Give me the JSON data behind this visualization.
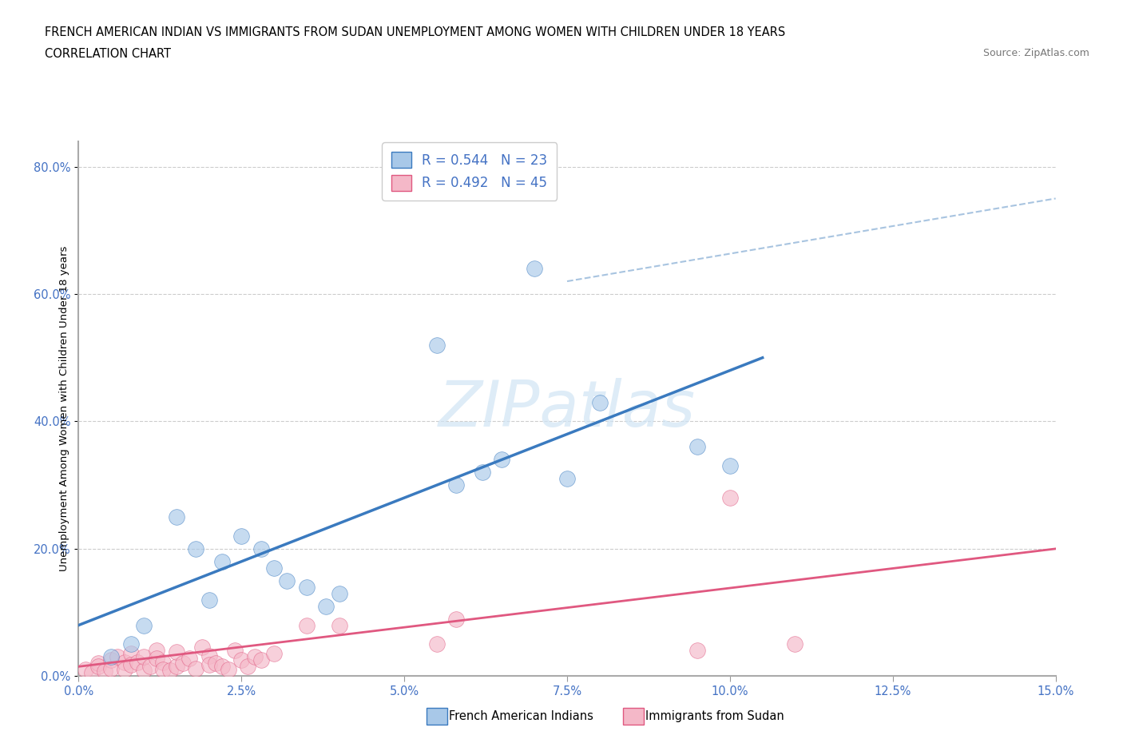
{
  "title_line1": "FRENCH AMERICAN INDIAN VS IMMIGRANTS FROM SUDAN UNEMPLOYMENT AMONG WOMEN WITH CHILDREN UNDER 18 YEARS",
  "title_line2": "CORRELATION CHART",
  "source": "Source: ZipAtlas.com",
  "xlabel_ticks": [
    "0.0%",
    "2.5%",
    "5.0%",
    "7.5%",
    "10.0%",
    "12.5%",
    "15.0%"
  ],
  "xlabel_vals": [
    0.0,
    2.5,
    5.0,
    7.5,
    10.0,
    12.5,
    15.0
  ],
  "ylabel_ticks": [
    "0.0%",
    "20.0%",
    "40.0%",
    "60.0%",
    "80.0%"
  ],
  "ylabel_vals": [
    0.0,
    20.0,
    40.0,
    60.0,
    80.0
  ],
  "ylabel_label": "Unemployment Among Women with Children Under 18 years",
  "legend_entry1": "R = 0.544   N = 23",
  "legend_entry2": "R = 0.492   N = 45",
  "legend_label1": "French American Indians",
  "legend_label2": "Immigrants from Sudan",
  "color_blue": "#a8c8e8",
  "color_pink": "#f4b8c8",
  "color_blue_line": "#3a7abf",
  "color_pink_line": "#e05880",
  "color_dashed_line": "#a8c4e0",
  "watermark_text": "ZIPatlas",
  "blue_scatter_x": [
    1.5,
    1.8,
    2.2,
    2.5,
    2.8,
    3.0,
    3.2,
    3.5,
    4.0,
    5.5,
    5.8,
    6.2,
    6.5,
    7.0,
    7.5,
    8.0,
    9.5,
    10.0,
    0.5,
    0.8,
    1.0,
    2.0,
    3.8
  ],
  "blue_scatter_y": [
    25.0,
    20.0,
    18.0,
    22.0,
    20.0,
    17.0,
    15.0,
    14.0,
    13.0,
    52.0,
    30.0,
    32.0,
    34.0,
    64.0,
    31.0,
    43.0,
    36.0,
    33.0,
    3.0,
    5.0,
    8.0,
    12.0,
    11.0
  ],
  "pink_scatter_x": [
    0.1,
    0.2,
    0.3,
    0.3,
    0.4,
    0.5,
    0.5,
    0.6,
    0.7,
    0.7,
    0.8,
    0.8,
    0.9,
    1.0,
    1.0,
    1.1,
    1.2,
    1.2,
    1.3,
    1.3,
    1.4,
    1.5,
    1.5,
    1.6,
    1.7,
    1.8,
    1.9,
    2.0,
    2.0,
    2.1,
    2.2,
    2.3,
    2.4,
    2.5,
    2.6,
    2.7,
    2.8,
    3.0,
    3.5,
    4.0,
    5.5,
    5.8,
    9.5,
    10.0,
    11.0
  ],
  "pink_scatter_y": [
    1.0,
    0.5,
    2.0,
    1.5,
    0.8,
    2.5,
    1.2,
    3.0,
    2.2,
    1.0,
    3.5,
    1.8,
    2.2,
    0.9,
    3.0,
    1.5,
    4.0,
    2.8,
    2.2,
    1.0,
    0.9,
    1.5,
    3.8,
    2.0,
    2.8,
    1.2,
    4.5,
    3.2,
    1.8,
    2.0,
    1.5,
    1.0,
    4.0,
    2.5,
    1.5,
    3.0,
    2.5,
    3.5,
    8.0,
    8.0,
    5.0,
    9.0,
    4.0,
    28.0,
    5.0
  ],
  "blue_line_x0": 0.0,
  "blue_line_x1": 10.5,
  "blue_line_y0": 8.0,
  "blue_line_y1": 50.0,
  "pink_line_x0": 0.0,
  "pink_line_x1": 15.0,
  "pink_line_y0": 1.5,
  "pink_line_y1": 20.0,
  "dashed_line_x0": 7.5,
  "dashed_line_x1": 15.0,
  "dashed_line_y0": 62.0,
  "dashed_line_y1": 75.0,
  "xlim": [
    0.0,
    15.0
  ],
  "ylim": [
    0.0,
    84.0
  ],
  "figsize": [
    14.06,
    9.3
  ],
  "dpi": 100
}
